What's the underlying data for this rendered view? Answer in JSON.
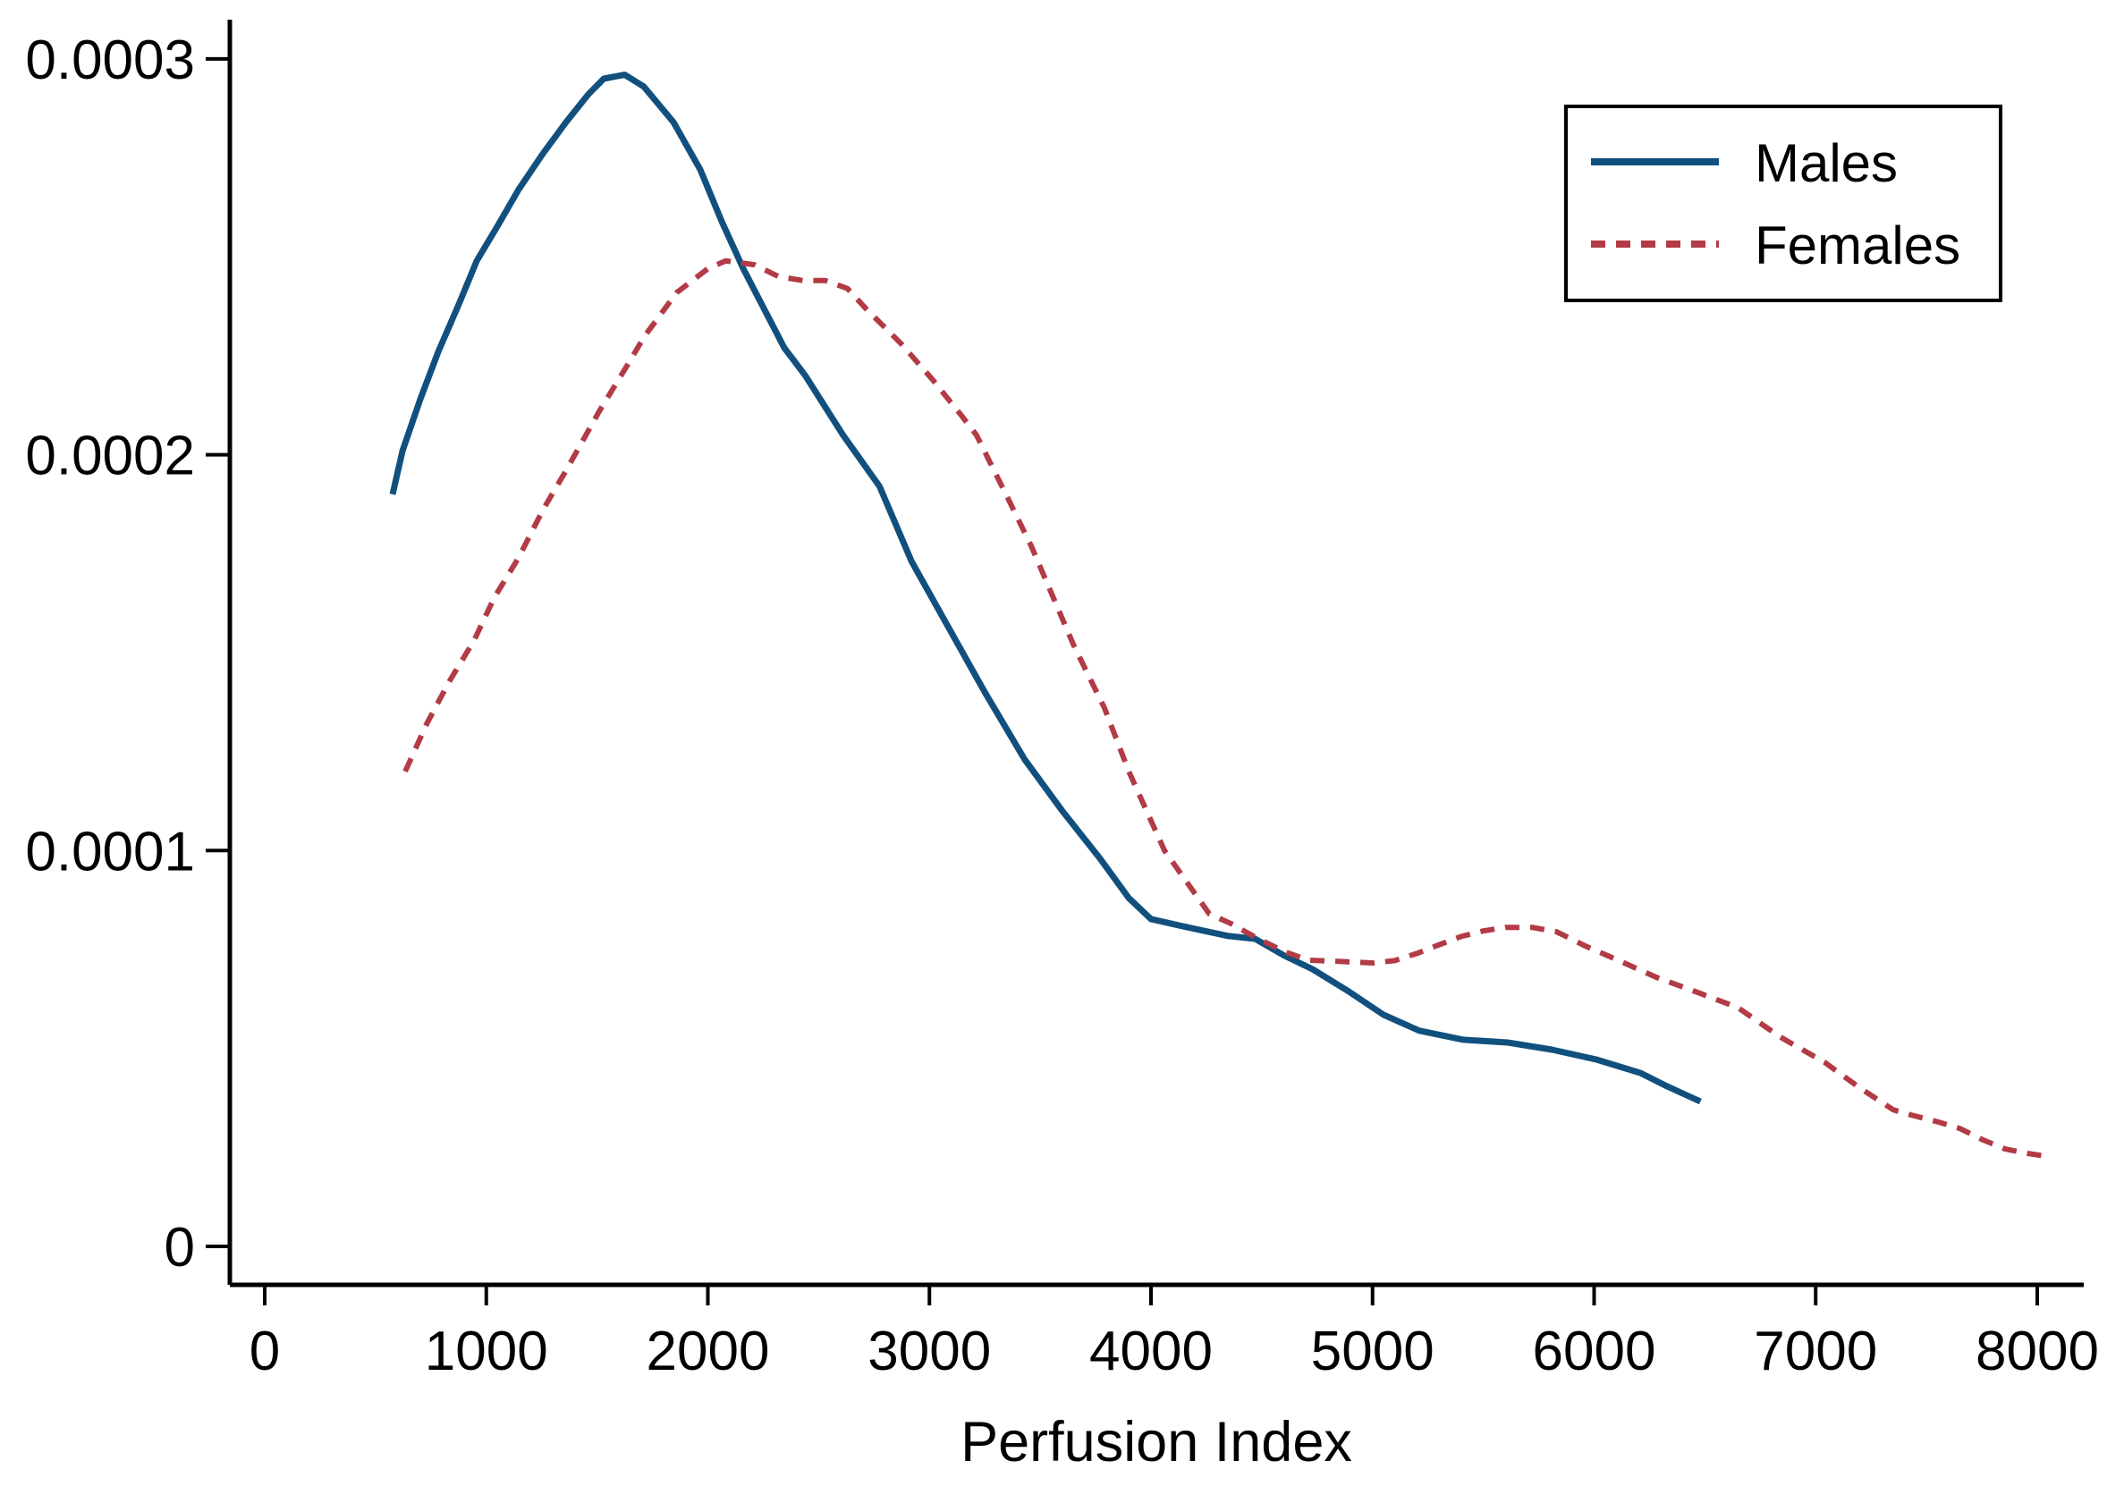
{
  "figure": {
    "background": "#ffffff",
    "axis_color": "#000000",
    "text_color": "#000000"
  },
  "chart_data": {
    "type": "line",
    "title": "",
    "xlabel": "Perfusion Index",
    "ylabel": "",
    "xlim": [
      0,
      8000
    ],
    "ylim": [
      0,
      0.0003
    ],
    "grid": "off",
    "legend_position": "top-right",
    "x_ticks": [
      {
        "value": 0,
        "label": "0"
      },
      {
        "value": 1000,
        "label": "1000"
      },
      {
        "value": 2000,
        "label": "2000"
      },
      {
        "value": 3000,
        "label": "3000"
      },
      {
        "value": 4000,
        "label": "4000"
      },
      {
        "value": 5000,
        "label": "5000"
      },
      {
        "value": 6000,
        "label": "6000"
      },
      {
        "value": 7000,
        "label": "7000"
      },
      {
        "value": 8000,
        "label": "8000"
      }
    ],
    "y_ticks": [
      {
        "value": 0,
        "label": "0"
      },
      {
        "value": 0.0001,
        "label": "0.0001"
      },
      {
        "value": 0.0002,
        "label": "0.0002"
      },
      {
        "value": 0.0003,
        "label": "0.0003"
      }
    ],
    "legend": {
      "entries": [
        {
          "label": "Males",
          "line_style": "solid",
          "color": "#11507e"
        },
        {
          "label": "Females",
          "line_style": "dashed",
          "color": "#b23b45"
        }
      ]
    },
    "series": [
      {
        "name": "Males",
        "color": "#11507e",
        "style": "solid",
        "stroke_width": 7,
        "points": [
          [
            577,
            0.00019
          ],
          [
            622,
            0.000201
          ],
          [
            702,
            0.000214
          ],
          [
            783,
            0.000226
          ],
          [
            876,
            0.000238
          ],
          [
            957,
            0.000249
          ],
          [
            1053,
            0.000258
          ],
          [
            1146,
            0.000267
          ],
          [
            1255,
            0.000276
          ],
          [
            1360,
            0.000284
          ],
          [
            1460,
            0.000291
          ],
          [
            1530,
            0.000295
          ],
          [
            1625,
            0.000296
          ],
          [
            1711,
            0.000293
          ],
          [
            1845,
            0.000284
          ],
          [
            1966,
            0.000272
          ],
          [
            2062,
            0.000259
          ],
          [
            2160,
            0.000247
          ],
          [
            2345,
            0.000227
          ],
          [
            2440,
            0.00022
          ],
          [
            2610,
            0.000205
          ],
          [
            2775,
            0.000192
          ],
          [
            2920,
            0.000173
          ],
          [
            3100,
            0.000155
          ],
          [
            3250,
            0.00014
          ],
          [
            3430,
            0.000123
          ],
          [
            3600,
            0.00011
          ],
          [
            3770,
            9.8e-05
          ],
          [
            3900,
            8.8e-05
          ],
          [
            4000,
            8.27e-05
          ],
          [
            4150,
            8.08e-05
          ],
          [
            4350,
            7.84e-05
          ],
          [
            4470,
            7.77e-05
          ],
          [
            4600,
            7.35e-05
          ],
          [
            4730,
            7e-05
          ],
          [
            4890,
            6.45e-05
          ],
          [
            5050,
            5.85e-05
          ],
          [
            5210,
            5.45e-05
          ],
          [
            5410,
            5.22e-05
          ],
          [
            5610,
            5.15e-05
          ],
          [
            5810,
            4.97e-05
          ],
          [
            6010,
            4.72e-05
          ],
          [
            6210,
            4.38e-05
          ],
          [
            6330,
            4.04e-05
          ],
          [
            6480,
            3.66e-05
          ]
        ]
      },
      {
        "name": "Females",
        "color": "#b23b45",
        "style": "dashed",
        "stroke_width": 6,
        "points": [
          [
            634,
            0.00012
          ],
          [
            731,
            0.000132
          ],
          [
            836,
            0.000143
          ],
          [
            944,
            0.000153
          ],
          [
            1037,
            0.000164
          ],
          [
            1146,
            0.000174
          ],
          [
            1255,
            0.000186
          ],
          [
            1360,
            0.000196
          ],
          [
            1430,
            0.000203
          ],
          [
            1510,
            0.000211
          ],
          [
            1630,
            0.000222
          ],
          [
            1715,
            0.00023
          ],
          [
            1860,
            0.000241
          ],
          [
            2000,
            0.000247
          ],
          [
            2080,
            0.000249
          ],
          [
            2210,
            0.000248
          ],
          [
            2320,
            0.000245
          ],
          [
            2430,
            0.000244
          ],
          [
            2530,
            0.000244
          ],
          [
            2630,
            0.000242
          ],
          [
            2712,
            0.000237
          ],
          [
            2873,
            0.000228
          ],
          [
            3014,
            0.000219
          ],
          [
            3143,
            0.00021
          ],
          [
            3212,
            0.000205
          ],
          [
            3354,
            0.000189
          ],
          [
            3459,
            0.000177
          ],
          [
            3650,
            0.000152
          ],
          [
            3790,
            0.000136
          ],
          [
            3900,
            0.00012
          ],
          [
            4061,
            0.0001
          ],
          [
            4186,
            9.01e-05
          ],
          [
            4263,
            8.4e-05
          ],
          [
            4363,
            8.15e-05
          ],
          [
            4468,
            7.82e-05
          ],
          [
            4600,
            7.45e-05
          ],
          [
            4710,
            7.23e-05
          ],
          [
            4850,
            7.2e-05
          ],
          [
            5000,
            7.16e-05
          ],
          [
            5100,
            7.22e-05
          ],
          [
            5200,
            7.4e-05
          ],
          [
            5300,
            7.62e-05
          ],
          [
            5400,
            7.83e-05
          ],
          [
            5500,
            7.97e-05
          ],
          [
            5600,
            8.06e-05
          ],
          [
            5720,
            8.06e-05
          ],
          [
            5830,
            7.95e-05
          ],
          [
            5960,
            7.59e-05
          ],
          [
            6100,
            7.25e-05
          ],
          [
            6280,
            6.8e-05
          ],
          [
            6470,
            6.41e-05
          ],
          [
            6650,
            6.03e-05
          ],
          [
            6840,
            5.29e-05
          ],
          [
            7040,
            4.65e-05
          ],
          [
            7200,
            4e-05
          ],
          [
            7350,
            3.45e-05
          ],
          [
            7430,
            3.32e-05
          ],
          [
            7555,
            3.14e-05
          ],
          [
            7650,
            2.98e-05
          ],
          [
            7755,
            2.69e-05
          ],
          [
            7855,
            2.46e-05
          ],
          [
            7955,
            2.35e-05
          ],
          [
            8040,
            2.28e-05
          ]
        ]
      }
    ]
  }
}
